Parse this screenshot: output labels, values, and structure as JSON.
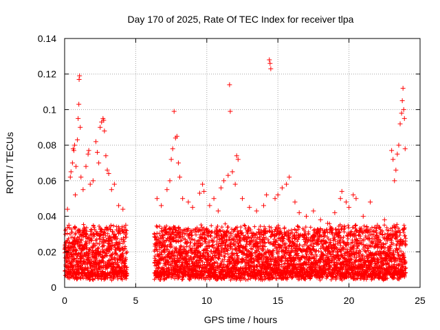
{
  "chart_data": {
    "type": "scatter",
    "title": "Day 170 of 2025, Rate Of TEC Index for receiver tlpa",
    "xlabel": "GPS time / hours",
    "ylabel": "ROTI / TECUs",
    "xlim": [
      0,
      25
    ],
    "ylim": [
      0,
      0.14
    ],
    "x_ticks": [
      0,
      5,
      10,
      15,
      20,
      25
    ],
    "y_ticks": [
      0,
      0.02,
      0.04,
      0.06,
      0.08,
      0.1,
      0.12,
      0.14
    ],
    "x_tick_labels": [
      "0",
      "5",
      "10",
      "15",
      "20",
      "25"
    ],
    "y_tick_labels": [
      "0",
      "0.02",
      "0.04",
      "0.06",
      "0.08",
      "0.1",
      "0.12",
      "0.14"
    ],
    "grid": true,
    "marker": "+",
    "marker_color": "#ff0000",
    "data_gap_hours": [
      4.4,
      6.3
    ],
    "series": [
      {
        "name": "ROTI",
        "points": [
          [
            0.1,
            0.02
          ],
          [
            0.2,
            0.044
          ],
          [
            0.3,
            0.035
          ],
          [
            0.4,
            0.062
          ],
          [
            0.45,
            0.065
          ],
          [
            0.55,
            0.07
          ],
          [
            0.6,
            0.078
          ],
          [
            0.65,
            0.077
          ],
          [
            0.7,
            0.08
          ],
          [
            0.75,
            0.052
          ],
          [
            0.8,
            0.068
          ],
          [
            0.9,
            0.083
          ],
          [
            0.95,
            0.095
          ],
          [
            1.0,
            0.103
          ],
          [
            1.02,
            0.117
          ],
          [
            1.05,
            0.119
          ],
          [
            1.1,
            0.09
          ],
          [
            1.15,
            0.062
          ],
          [
            1.3,
            0.055
          ],
          [
            1.5,
            0.068
          ],
          [
            1.65,
            0.075
          ],
          [
            1.7,
            0.077
          ],
          [
            1.8,
            0.058
          ],
          [
            2.0,
            0.06
          ],
          [
            2.2,
            0.082
          ],
          [
            2.3,
            0.076
          ],
          [
            2.4,
            0.07
          ],
          [
            2.5,
            0.09
          ],
          [
            2.6,
            0.093
          ],
          [
            2.7,
            0.095
          ],
          [
            2.75,
            0.094
          ],
          [
            2.8,
            0.088
          ],
          [
            2.9,
            0.074
          ],
          [
            3.0,
            0.066
          ],
          [
            3.1,
            0.064
          ],
          [
            3.3,
            0.055
          ],
          [
            3.5,
            0.058
          ],
          [
            3.8,
            0.046
          ],
          [
            4.1,
            0.044
          ],
          [
            4.3,
            0.035
          ],
          [
            6.5,
            0.05
          ],
          [
            6.8,
            0.046
          ],
          [
            7.2,
            0.055
          ],
          [
            7.4,
            0.06
          ],
          [
            7.5,
            0.072
          ],
          [
            7.6,
            0.078
          ],
          [
            7.7,
            0.099
          ],
          [
            7.8,
            0.084
          ],
          [
            7.9,
            0.085
          ],
          [
            8.0,
            0.07
          ],
          [
            8.1,
            0.062
          ],
          [
            8.3,
            0.05
          ],
          [
            8.7,
            0.048
          ],
          [
            9.0,
            0.045
          ],
          [
            9.5,
            0.053
          ],
          [
            9.7,
            0.058
          ],
          [
            9.8,
            0.054
          ],
          [
            10.2,
            0.046
          ],
          [
            10.5,
            0.05
          ],
          [
            10.8,
            0.043
          ],
          [
            11.0,
            0.056
          ],
          [
            11.2,
            0.06
          ],
          [
            11.5,
            0.063
          ],
          [
            11.6,
            0.114
          ],
          [
            11.65,
            0.099
          ],
          [
            11.8,
            0.065
          ],
          [
            12.0,
            0.058
          ],
          [
            12.1,
            0.074
          ],
          [
            12.2,
            0.072
          ],
          [
            12.5,
            0.05
          ],
          [
            13.0,
            0.045
          ],
          [
            13.5,
            0.043
          ],
          [
            14.0,
            0.046
          ],
          [
            14.2,
            0.052
          ],
          [
            14.4,
            0.128
          ],
          [
            14.45,
            0.126
          ],
          [
            14.5,
            0.123
          ],
          [
            14.8,
            0.05
          ],
          [
            15.0,
            0.052
          ],
          [
            15.3,
            0.056
          ],
          [
            15.6,
            0.058
          ],
          [
            15.8,
            0.062
          ],
          [
            16.2,
            0.048
          ],
          [
            16.5,
            0.042
          ],
          [
            17.0,
            0.04
          ],
          [
            17.5,
            0.043
          ],
          [
            18.0,
            0.038
          ],
          [
            18.5,
            0.036
          ],
          [
            19.0,
            0.042
          ],
          [
            19.4,
            0.05
          ],
          [
            19.5,
            0.054
          ],
          [
            19.8,
            0.048
          ],
          [
            20.0,
            0.045
          ],
          [
            20.3,
            0.052
          ],
          [
            20.5,
            0.05
          ],
          [
            21.0,
            0.04
          ],
          [
            21.5,
            0.048
          ],
          [
            22.0,
            0.035
          ],
          [
            22.5,
            0.038
          ],
          [
            23.0,
            0.077
          ],
          [
            23.1,
            0.072
          ],
          [
            23.2,
            0.06
          ],
          [
            23.3,
            0.066
          ],
          [
            23.4,
            0.075
          ],
          [
            23.5,
            0.08
          ],
          [
            23.6,
            0.092
          ],
          [
            23.7,
            0.098
          ],
          [
            23.75,
            0.105
          ],
          [
            23.8,
            0.112
          ],
          [
            23.85,
            0.1
          ],
          [
            23.9,
            0.095
          ],
          [
            23.95,
            0.078
          ]
        ],
        "dense_band": {
          "description": "continuous dense cluster of points along the bottom of the plot",
          "segments_hours": [
            [
              0.0,
              4.4
            ],
            [
              6.3,
              24.0
            ]
          ],
          "y_range": [
            0.004,
            0.032
          ]
        }
      }
    ]
  }
}
